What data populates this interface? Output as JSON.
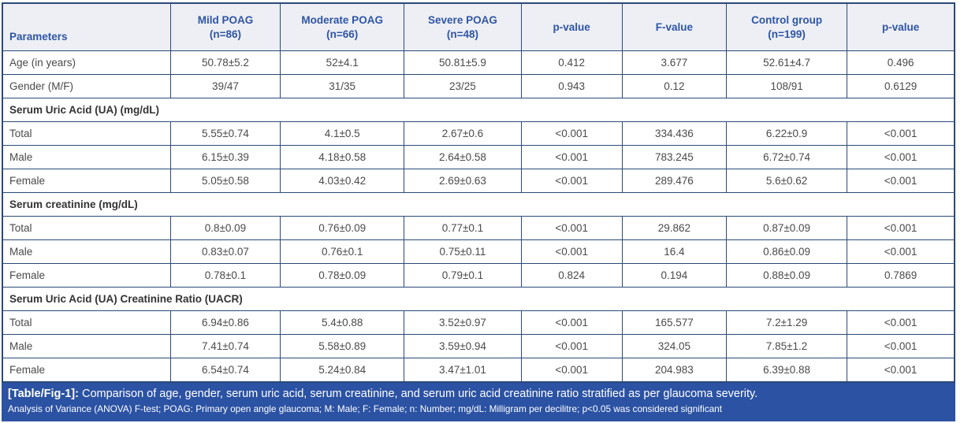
{
  "colors": {
    "border": "#2a4a78",
    "header_bg": "#edeff5",
    "header_text": "#2f55a4",
    "body_text": "#4a4a4a",
    "section_text": "#333333",
    "footer_bg": "#2b52a3",
    "footer_text": "#ffffff"
  },
  "table": {
    "columns": [
      "Parameters",
      "Mild POAG\n(n=86)",
      "Moderate POAG\n(n=66)",
      "Severe POAG\n(n=48)",
      "p-value",
      "F-value",
      "Control group\n(n=199)",
      "p-value"
    ],
    "rows": [
      {
        "type": "data",
        "cells": [
          "Age (in years)",
          "50.78±5.2",
          "52±4.1",
          "50.81±5.9",
          "0.412",
          "3.677",
          "52.61±4.7",
          "0.496"
        ]
      },
      {
        "type": "data",
        "cells": [
          "Gender (M/F)",
          "39/47",
          "31/35",
          "23/25",
          "0.943",
          "0.12",
          "108/91",
          "0.6129"
        ]
      },
      {
        "type": "section",
        "label": "Serum Uric Acid (UA) (mg/dL)"
      },
      {
        "type": "data",
        "cells": [
          "Total",
          "5.55±0.74",
          "4.1±0.5",
          "2.67±0.6",
          "<0.001",
          "334.436",
          "6.22±0.9",
          "<0.001"
        ]
      },
      {
        "type": "data",
        "cells": [
          "Male",
          "6.15±0.39",
          "4.18±0.58",
          "2.64±0.58",
          "<0.001",
          "783.245",
          "6.72±0.74",
          "<0.001"
        ]
      },
      {
        "type": "data",
        "cells": [
          "Female",
          "5.05±0.58",
          "4.03±0.42",
          "2.69±0.63",
          "<0.001",
          "289.476",
          "5.6±0.62",
          "<0.001"
        ]
      },
      {
        "type": "section",
        "label": "Serum creatinine (mg/dL)"
      },
      {
        "type": "data",
        "cells": [
          "Total",
          "0.8±0.09",
          "0.76±0.09",
          "0.77±0.1",
          "<0.001",
          "29.862",
          "0.87±0.09",
          "<0.001"
        ]
      },
      {
        "type": "data",
        "cells": [
          "Male",
          "0.83±0.07",
          "0.76±0.1",
          "0.75±0.11",
          "<0.001",
          "16.4",
          "0.86±0.09",
          "<0.001"
        ]
      },
      {
        "type": "data",
        "cells": [
          "Female",
          "0.78±0.1",
          "0.78±0.09",
          "0.79±0.1",
          "0.824",
          "0.194",
          "0.88±0.09",
          "0.7869"
        ]
      },
      {
        "type": "section",
        "label": "Serum Uric Acid (UA) Creatinine Ratio (UACR)"
      },
      {
        "type": "data",
        "cells": [
          "Total",
          "6.94±0.86",
          "5.4±0.88",
          "3.52±0.97",
          "<0.001",
          "165.577",
          "7.2±1.29",
          "<0.001"
        ]
      },
      {
        "type": "data",
        "cells": [
          "Male",
          "7.41±0.74",
          "5.58±0.89",
          "3.59±0.94",
          "<0.001",
          "324.05",
          "7.85±1.2",
          "<0.001"
        ]
      },
      {
        "type": "data",
        "cells": [
          "Female",
          "6.54±0.74",
          "5.24±0.84",
          "3.47±1.01",
          "<0.001",
          "204.983",
          "6.39±0.88",
          "<0.001"
        ]
      }
    ]
  },
  "caption": {
    "tag": "[Table/Fig-1]:",
    "text": "Comparison of age, gender, serum uric acid, serum creatinine, and serum uric acid creatinine ratio stratified as per glaucoma severity.",
    "note": "Analysis of Variance (ANOVA) F-test; POAG: Primary open angle glaucoma; M: Male; F: Female; n: Number; mg/dL: Milligram per decilitre; p<0.05 was considered significant"
  }
}
